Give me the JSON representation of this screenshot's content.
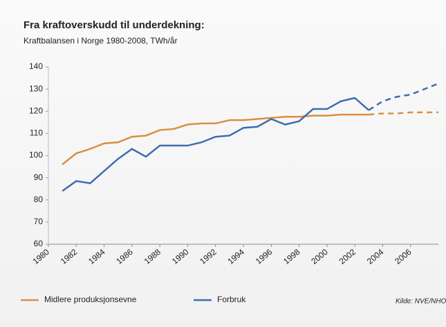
{
  "chart_data": {
    "type": "line",
    "title": "Fra kraftoverskudd til underdekning:",
    "subtitle": "Kraftbalansen i Norge 1980-2008, TWh/år",
    "source": "Kilde: NVE/NHO",
    "x": [
      1981,
      1982,
      1983,
      1984,
      1985,
      1986,
      1987,
      1988,
      1989,
      1990,
      1991,
      1992,
      1993,
      1994,
      1995,
      1996,
      1997,
      1998,
      1999,
      2000,
      2001,
      2002,
      2003,
      2004,
      2005,
      2006,
      2007,
      2008
    ],
    "forecast_from": 2003,
    "series": [
      {
        "name": "Midlere produksjonsevne",
        "color": "#d98f3e",
        "values": [
          96,
          101,
          103,
          105.5,
          106,
          108.5,
          109,
          111.5,
          112,
          114,
          114.5,
          114.5,
          116,
          116,
          116.5,
          117,
          117.5,
          117.5,
          118,
          118,
          118.5,
          118.5,
          118.5,
          119,
          119,
          119.5,
          119.5,
          119.5
        ]
      },
      {
        "name": "Forbruk",
        "color": "#3d6cb0",
        "values": [
          84,
          88.5,
          87.5,
          93,
          98.5,
          103,
          99.5,
          104.5,
          104.5,
          104.5,
          106,
          108.5,
          109,
          112.5,
          113,
          116.5,
          114,
          115.5,
          121,
          121,
          124.5,
          126,
          120.5,
          124.5,
          126.5,
          127.5,
          130,
          132.5
        ]
      }
    ],
    "xlim": [
      1980,
      2008
    ],
    "xticks": [
      1980,
      1982,
      1984,
      1986,
      1988,
      1990,
      1992,
      1994,
      1996,
      1998,
      2000,
      2002,
      2004,
      2006
    ],
    "ylim": [
      60,
      140
    ],
    "yticks": [
      60,
      70,
      80,
      90,
      100,
      110,
      120,
      130,
      140
    ]
  }
}
